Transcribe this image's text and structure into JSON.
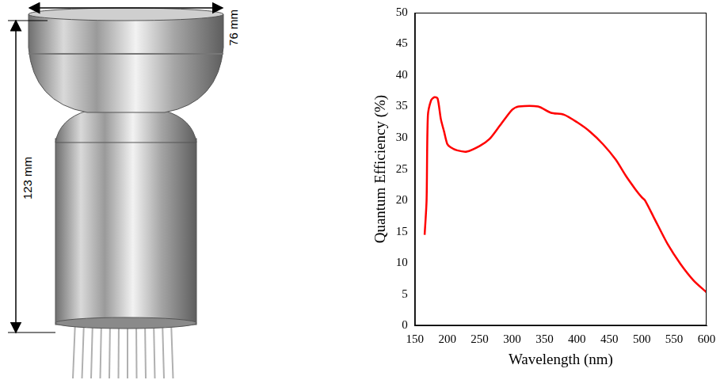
{
  "chart_data": {
    "type": "line",
    "x_label": "Wavelength (nm)",
    "y_label": "Quantum Efficiency (%)",
    "x": [
      165,
      168,
      170,
      175,
      180,
      185,
      190,
      195,
      200,
      205,
      215,
      230,
      250,
      265,
      280,
      300,
      310,
      340,
      360,
      380,
      400,
      420,
      440,
      460,
      475,
      490,
      500,
      505,
      520,
      540,
      560,
      580,
      600
    ],
    "values": [
      14.5,
      20,
      33.5,
      36,
      36.5,
      36.3,
      33,
      31,
      29,
      28.5,
      28,
      27.8,
      28.7,
      29.8,
      31.8,
      34.5,
      35,
      35,
      34,
      33.7,
      32.5,
      31,
      29,
      26.5,
      24,
      21.8,
      20.5,
      20,
      17,
      13,
      9.8,
      7.2,
      5.3
    ],
    "color": "#ff0000",
    "xlim": [
      150,
      600
    ],
    "xticks": [
      150,
      200,
      250,
      300,
      350,
      400,
      450,
      500,
      550,
      600
    ],
    "ylim": [
      0,
      50
    ],
    "yticks": [
      0,
      5,
      10,
      15,
      20,
      25,
      30,
      35,
      40,
      45,
      50
    ],
    "grid": false
  },
  "photo": {
    "width_label": "76 mm",
    "height_label": "123 mm"
  }
}
